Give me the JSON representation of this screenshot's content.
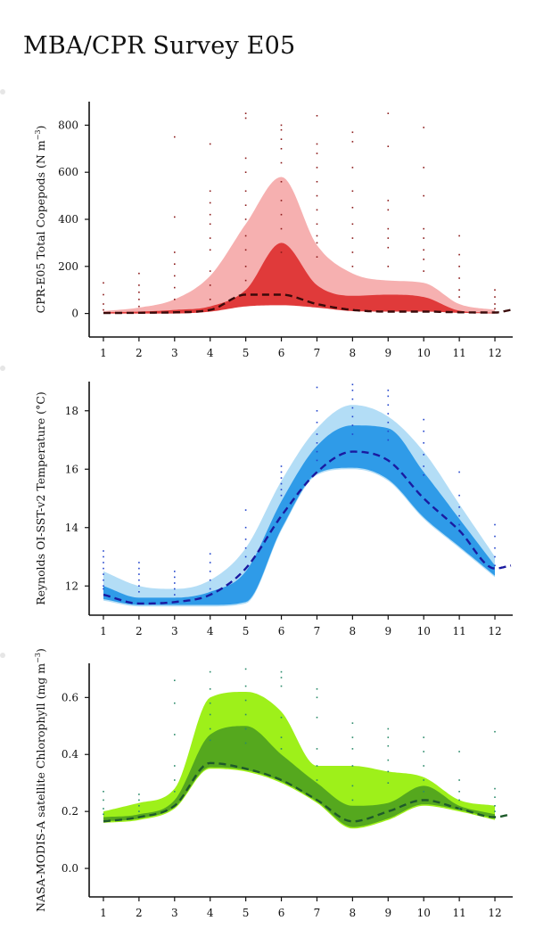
{
  "title": "MBA/CPR Survey E05",
  "chart_data": [
    {
      "type": "area",
      "ylabel": "CPR-E05 Total Copepods (N m^-3)",
      "ylabel_parts": [
        "CPR-E05 Total Copepods (N m",
        "−3",
        ")"
      ],
      "xticks": [
        1,
        2,
        3,
        4,
        5,
        6,
        7,
        8,
        9,
        10,
        11,
        12
      ],
      "yticks": [
        0,
        200,
        400,
        600,
        800
      ],
      "ylim": [
        -100,
        900
      ],
      "xlim": [
        0.6,
        12.5
      ],
      "colors": {
        "outer": "#f6b0b0",
        "inner": "#e03a3a",
        "median": "#3a0a0a",
        "points": "#8b1a1a"
      },
      "x": [
        1,
        2,
        3,
        4,
        5,
        6,
        7,
        8,
        9,
        10,
        11,
        12
      ],
      "outer_low": [
        0,
        0,
        0,
        10,
        40,
        60,
        40,
        20,
        15,
        15,
        5,
        0
      ],
      "outer_high": [
        10,
        25,
        60,
        160,
        380,
        580,
        290,
        170,
        140,
        130,
        40,
        15
      ],
      "inner_low": [
        0,
        0,
        0,
        8,
        30,
        35,
        25,
        10,
        8,
        8,
        3,
        0
      ],
      "inner_high": [
        5,
        8,
        15,
        30,
        100,
        300,
        120,
        75,
        80,
        70,
        12,
        3
      ],
      "median": [
        2,
        3,
        5,
        15,
        80,
        80,
        40,
        15,
        8,
        8,
        5,
        4
      ],
      "median_end": 15,
      "points": [
        [
          1,
          130
        ],
        [
          1,
          80
        ],
        [
          1,
          40
        ],
        [
          1,
          15
        ],
        [
          2,
          170
        ],
        [
          2,
          120
        ],
        [
          2,
          90
        ],
        [
          2,
          60
        ],
        [
          2,
          30
        ],
        [
          3,
          750
        ],
        [
          3,
          410
        ],
        [
          3,
          260
        ],
        [
          3,
          210
        ],
        [
          3,
          160
        ],
        [
          3,
          110
        ],
        [
          3,
          60
        ],
        [
          4,
          720
        ],
        [
          4,
          520
        ],
        [
          4,
          470
        ],
        [
          4,
          420
        ],
        [
          4,
          380
        ],
        [
          4,
          320
        ],
        [
          4,
          270
        ],
        [
          4,
          180
        ],
        [
          4,
          120
        ],
        [
          4,
          60
        ],
        [
          5,
          850
        ],
        [
          5,
          830
        ],
        [
          5,
          660
        ],
        [
          5,
          600
        ],
        [
          5,
          520
        ],
        [
          5,
          460
        ],
        [
          5,
          400
        ],
        [
          5,
          330
        ],
        [
          5,
          270
        ],
        [
          5,
          200
        ],
        [
          5,
          140
        ],
        [
          6,
          800
        ],
        [
          6,
          780
        ],
        [
          6,
          740
        ],
        [
          6,
          700
        ],
        [
          6,
          640
        ],
        [
          6,
          560
        ],
        [
          6,
          480
        ],
        [
          6,
          420
        ],
        [
          6,
          360
        ],
        [
          6,
          260
        ],
        [
          7,
          840
        ],
        [
          7,
          720
        ],
        [
          7,
          680
        ],
        [
          7,
          620
        ],
        [
          7,
          560
        ],
        [
          7,
          500
        ],
        [
          7,
          440
        ],
        [
          7,
          380
        ],
        [
          7,
          330
        ],
        [
          7,
          300
        ],
        [
          7,
          240
        ],
        [
          8,
          770
        ],
        [
          8,
          730
        ],
        [
          8,
          620
        ],
        [
          8,
          520
        ],
        [
          8,
          450
        ],
        [
          8,
          380
        ],
        [
          8,
          320
        ],
        [
          8,
          260
        ],
        [
          8,
          200
        ],
        [
          9,
          850
        ],
        [
          9,
          710
        ],
        [
          9,
          480
        ],
        [
          9,
          440
        ],
        [
          9,
          360
        ],
        [
          9,
          320
        ],
        [
          9,
          280
        ],
        [
          9,
          200
        ],
        [
          10,
          790
        ],
        [
          10,
          620
        ],
        [
          10,
          500
        ],
        [
          10,
          360
        ],
        [
          10,
          320
        ],
        [
          10,
          270
        ],
        [
          10,
          230
        ],
        [
          10,
          180
        ],
        [
          11,
          330
        ],
        [
          11,
          250
        ],
        [
          11,
          200
        ],
        [
          11,
          150
        ],
        [
          11,
          100
        ],
        [
          11,
          70
        ],
        [
          12,
          100
        ],
        [
          12,
          70
        ],
        [
          12,
          40
        ],
        [
          12,
          20
        ]
      ]
    },
    {
      "type": "area",
      "ylabel": "Reynolds OI-SST-v2 Temperature (°C)",
      "ylabel_parts": [
        "Reynolds OI-SST-v2 Temperature (°C)",
        "",
        ""
      ],
      "xticks": [
        1,
        2,
        3,
        4,
        5,
        6,
        7,
        8,
        9,
        10,
        11,
        12
      ],
      "yticks": [
        12,
        14,
        16,
        18
      ],
      "ylim": [
        11.0,
        19.0
      ],
      "xlim": [
        0.6,
        12.5
      ],
      "colors": {
        "outer": "#b3ddf6",
        "inner": "#2f9be8",
        "median": "#1a1aa0",
        "points": "#2244cc"
      },
      "x": [
        1,
        2,
        3,
        4,
        5,
        6,
        7,
        8,
        9,
        10,
        11,
        12
      ],
      "outer_low": [
        11.5,
        11.3,
        11.3,
        11.3,
        11.4,
        13.9,
        15.8,
        16.0,
        15.6,
        14.3,
        13.3,
        12.3
      ],
      "outer_high": [
        12.5,
        12.0,
        11.9,
        12.2,
        13.3,
        15.6,
        17.4,
        18.2,
        17.8,
        16.6,
        14.8,
        13.0
      ],
      "inner_low": [
        11.55,
        11.35,
        11.35,
        11.35,
        11.45,
        13.95,
        15.85,
        16.05,
        15.65,
        14.35,
        13.35,
        12.35
      ],
      "inner_high": [
        12.0,
        11.6,
        11.6,
        11.8,
        12.5,
        14.9,
        16.8,
        17.5,
        17.4,
        15.9,
        14.3,
        12.7
      ],
      "median": [
        11.7,
        11.4,
        11.45,
        11.7,
        12.6,
        14.4,
        15.9,
        16.6,
        16.3,
        15.0,
        13.9,
        12.6
      ],
      "median_end": 12.7,
      "points": [
        [
          1,
          13.2
        ],
        [
          1,
          13.0
        ],
        [
          1,
          12.8
        ],
        [
          1,
          12.6
        ],
        [
          1,
          12.4
        ],
        [
          1,
          12.2
        ],
        [
          1,
          12.0
        ],
        [
          1,
          11.9
        ],
        [
          2,
          12.8
        ],
        [
          2,
          12.6
        ],
        [
          2,
          12.4
        ],
        [
          2,
          12.2
        ],
        [
          2,
          12.0
        ],
        [
          2,
          11.8
        ],
        [
          3,
          12.5
        ],
        [
          3,
          12.3
        ],
        [
          3,
          12.1
        ],
        [
          3,
          11.9
        ],
        [
          3,
          11.7
        ],
        [
          4,
          13.1
        ],
        [
          4,
          12.8
        ],
        [
          4,
          12.5
        ],
        [
          4,
          12.2
        ],
        [
          4,
          11.9
        ],
        [
          5,
          14.6
        ],
        [
          5,
          14.0
        ],
        [
          5,
          13.6
        ],
        [
          5,
          13.3
        ],
        [
          5,
          13.0
        ],
        [
          6,
          16.1
        ],
        [
          6,
          15.9
        ],
        [
          6,
          15.7
        ],
        [
          6,
          15.5
        ],
        [
          6,
          15.3
        ],
        [
          6,
          15.1
        ],
        [
          7,
          18.8
        ],
        [
          7,
          18.0
        ],
        [
          7,
          17.6
        ],
        [
          7,
          17.2
        ],
        [
          7,
          16.9
        ],
        [
          7,
          16.6
        ],
        [
          7,
          16.3
        ],
        [
          8,
          18.9
        ],
        [
          8,
          18.7
        ],
        [
          8,
          18.4
        ],
        [
          8,
          18.1
        ],
        [
          8,
          17.8
        ],
        [
          8,
          17.5
        ],
        [
          8,
          17.2
        ],
        [
          9,
          18.7
        ],
        [
          9,
          18.5
        ],
        [
          9,
          18.2
        ],
        [
          9,
          17.9
        ],
        [
          9,
          17.6
        ],
        [
          9,
          17.3
        ],
        [
          9,
          17.0
        ],
        [
          10,
          17.7
        ],
        [
          10,
          17.3
        ],
        [
          10,
          16.9
        ],
        [
          10,
          16.5
        ],
        [
          10,
          16.1
        ],
        [
          10,
          15.8
        ],
        [
          11,
          15.9
        ],
        [
          11,
          15.1
        ],
        [
          11,
          14.7
        ],
        [
          11,
          14.4
        ],
        [
          11,
          14.1
        ],
        [
          12,
          14.1
        ],
        [
          12,
          13.7
        ],
        [
          12,
          13.3
        ],
        [
          12,
          13.0
        ],
        [
          12,
          12.7
        ]
      ]
    },
    {
      "type": "area",
      "ylabel": "NASA-MODIS-A satellite Chlorophyll (mg m^-3)",
      "ylabel_parts": [
        "NASA-MODIS-A satellite Chlorophyll (mg m",
        "−3",
        ")"
      ],
      "xticks": [
        1,
        2,
        3,
        4,
        5,
        6,
        7,
        8,
        9,
        10,
        11,
        12
      ],
      "yticks": [
        0.0,
        0.2,
        0.4,
        0.6
      ],
      "ylabels": [
        "0.0",
        "0.2",
        "0.4",
        "0.6"
      ],
      "ylim": [
        -0.1,
        0.72
      ],
      "xlim": [
        0.6,
        12.5
      ],
      "colors": {
        "outer": "#9ef01a",
        "inner": "#55a81e",
        "median": "#1e5a2a",
        "points": "#2a8a6a"
      },
      "x": [
        1,
        2,
        3,
        4,
        5,
        6,
        7,
        8,
        9,
        10,
        11,
        12
      ],
      "outer_low": [
        0.16,
        0.17,
        0.21,
        0.35,
        0.34,
        0.3,
        0.23,
        0.14,
        0.17,
        0.22,
        0.2,
        0.17
      ],
      "outer_high": [
        0.2,
        0.23,
        0.28,
        0.6,
        0.62,
        0.55,
        0.36,
        0.36,
        0.34,
        0.32,
        0.24,
        0.22
      ],
      "inner_low": [
        0.165,
        0.175,
        0.215,
        0.355,
        0.345,
        0.305,
        0.235,
        0.145,
        0.175,
        0.225,
        0.205,
        0.175
      ],
      "inner_high": [
        0.18,
        0.19,
        0.24,
        0.47,
        0.5,
        0.4,
        0.3,
        0.22,
        0.23,
        0.29,
        0.22,
        0.19
      ],
      "median": [
        0.165,
        0.18,
        0.22,
        0.37,
        0.35,
        0.31,
        0.24,
        0.165,
        0.2,
        0.24,
        0.21,
        0.18
      ],
      "median_end": 0.19,
      "points": [
        [
          1,
          0.27
        ],
        [
          1,
          0.24
        ],
        [
          1,
          0.21
        ],
        [
          1,
          0.19
        ],
        [
          2,
          0.26
        ],
        [
          2,
          0.24
        ],
        [
          2,
          0.22
        ],
        [
          2,
          0.2
        ],
        [
          3,
          0.66
        ],
        [
          3,
          0.58
        ],
        [
          3,
          0.47
        ],
        [
          3,
          0.36
        ],
        [
          3,
          0.31
        ],
        [
          3,
          0.27
        ],
        [
          4,
          0.69
        ],
        [
          4,
          0.63
        ],
        [
          4,
          0.58
        ],
        [
          4,
          0.54
        ],
        [
          4,
          0.49
        ],
        [
          4,
          0.45
        ],
        [
          5,
          0.7
        ],
        [
          5,
          0.64
        ],
        [
          5,
          0.59
        ],
        [
          5,
          0.54
        ],
        [
          5,
          0.49
        ],
        [
          5,
          0.44
        ],
        [
          6,
          0.69
        ],
        [
          6,
          0.67
        ],
        [
          6,
          0.64
        ],
        [
          6,
          0.53
        ],
        [
          6,
          0.46
        ],
        [
          6,
          0.42
        ],
        [
          7,
          0.63
        ],
        [
          7,
          0.6
        ],
        [
          7,
          0.53
        ],
        [
          7,
          0.42
        ],
        [
          7,
          0.36
        ],
        [
          7,
          0.31
        ],
        [
          8,
          0.51
        ],
        [
          8,
          0.46
        ],
        [
          8,
          0.42
        ],
        [
          8,
          0.36
        ],
        [
          8,
          0.29
        ],
        [
          8,
          0.24
        ],
        [
          9,
          0.49
        ],
        [
          9,
          0.46
        ],
        [
          9,
          0.43
        ],
        [
          9,
          0.38
        ],
        [
          9,
          0.34
        ],
        [
          9,
          0.3
        ],
        [
          10,
          0.46
        ],
        [
          10,
          0.41
        ],
        [
          10,
          0.36
        ],
        [
          10,
          0.31
        ],
        [
          10,
          0.27
        ],
        [
          11,
          0.41
        ],
        [
          11,
          0.31
        ],
        [
          11,
          0.27
        ],
        [
          11,
          0.24
        ],
        [
          11,
          0.21
        ],
        [
          12,
          0.48
        ],
        [
          12,
          0.28
        ],
        [
          12,
          0.25
        ],
        [
          12,
          0.22
        ],
        [
          12,
          0.2
        ]
      ]
    }
  ]
}
